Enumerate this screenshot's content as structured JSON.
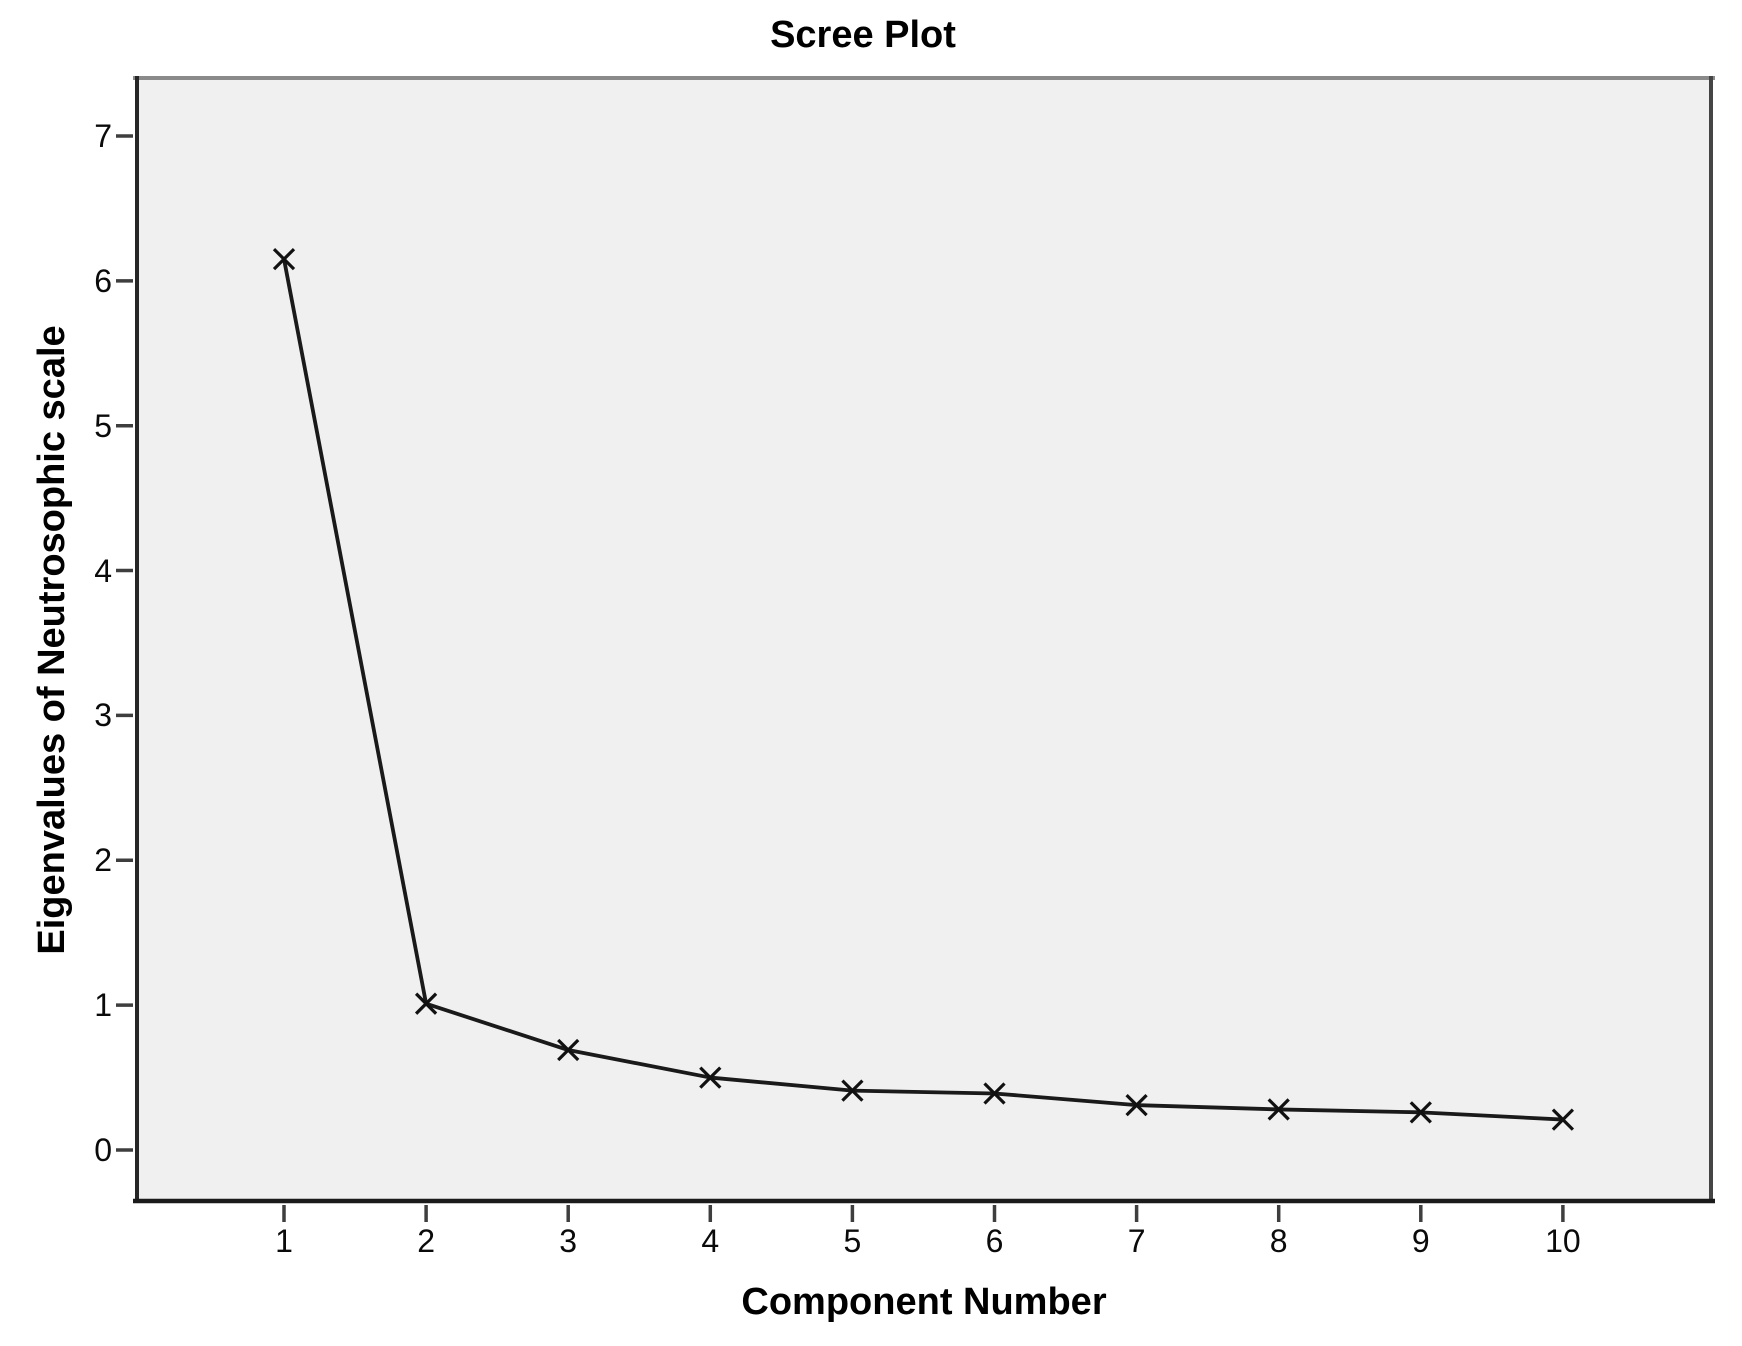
{
  "chart_data": {
    "type": "line",
    "title": "Scree Plot",
    "xlabel": "Component Number",
    "ylabel": "Eigenvalues of Neutrosophic scale",
    "x": [
      1,
      2,
      3,
      4,
      5,
      6,
      7,
      8,
      9,
      10
    ],
    "values": [
      6.15,
      1.01,
      0.69,
      0.5,
      0.41,
      0.39,
      0.31,
      0.28,
      0.26,
      0.21
    ],
    "x_ticks": [
      "1",
      "2",
      "3",
      "4",
      "5",
      "6",
      "7",
      "8",
      "9",
      "10"
    ],
    "y_ticks": [
      "0",
      "1",
      "2",
      "3",
      "4",
      "5",
      "6",
      "7"
    ],
    "xlim": [
      -0.05,
      11.05
    ],
    "ylim": [
      -0.37,
      7.42
    ],
    "grid": false,
    "legend": null,
    "marker": "x",
    "colors": {
      "line": "#1a1a1a",
      "marker": "#111111",
      "plot_bg": "#f0f0f0",
      "frame_dark": "#262626",
      "frame_top": "#8a8a8a",
      "tick": "#3e3e3e",
      "text": "#000000"
    }
  }
}
